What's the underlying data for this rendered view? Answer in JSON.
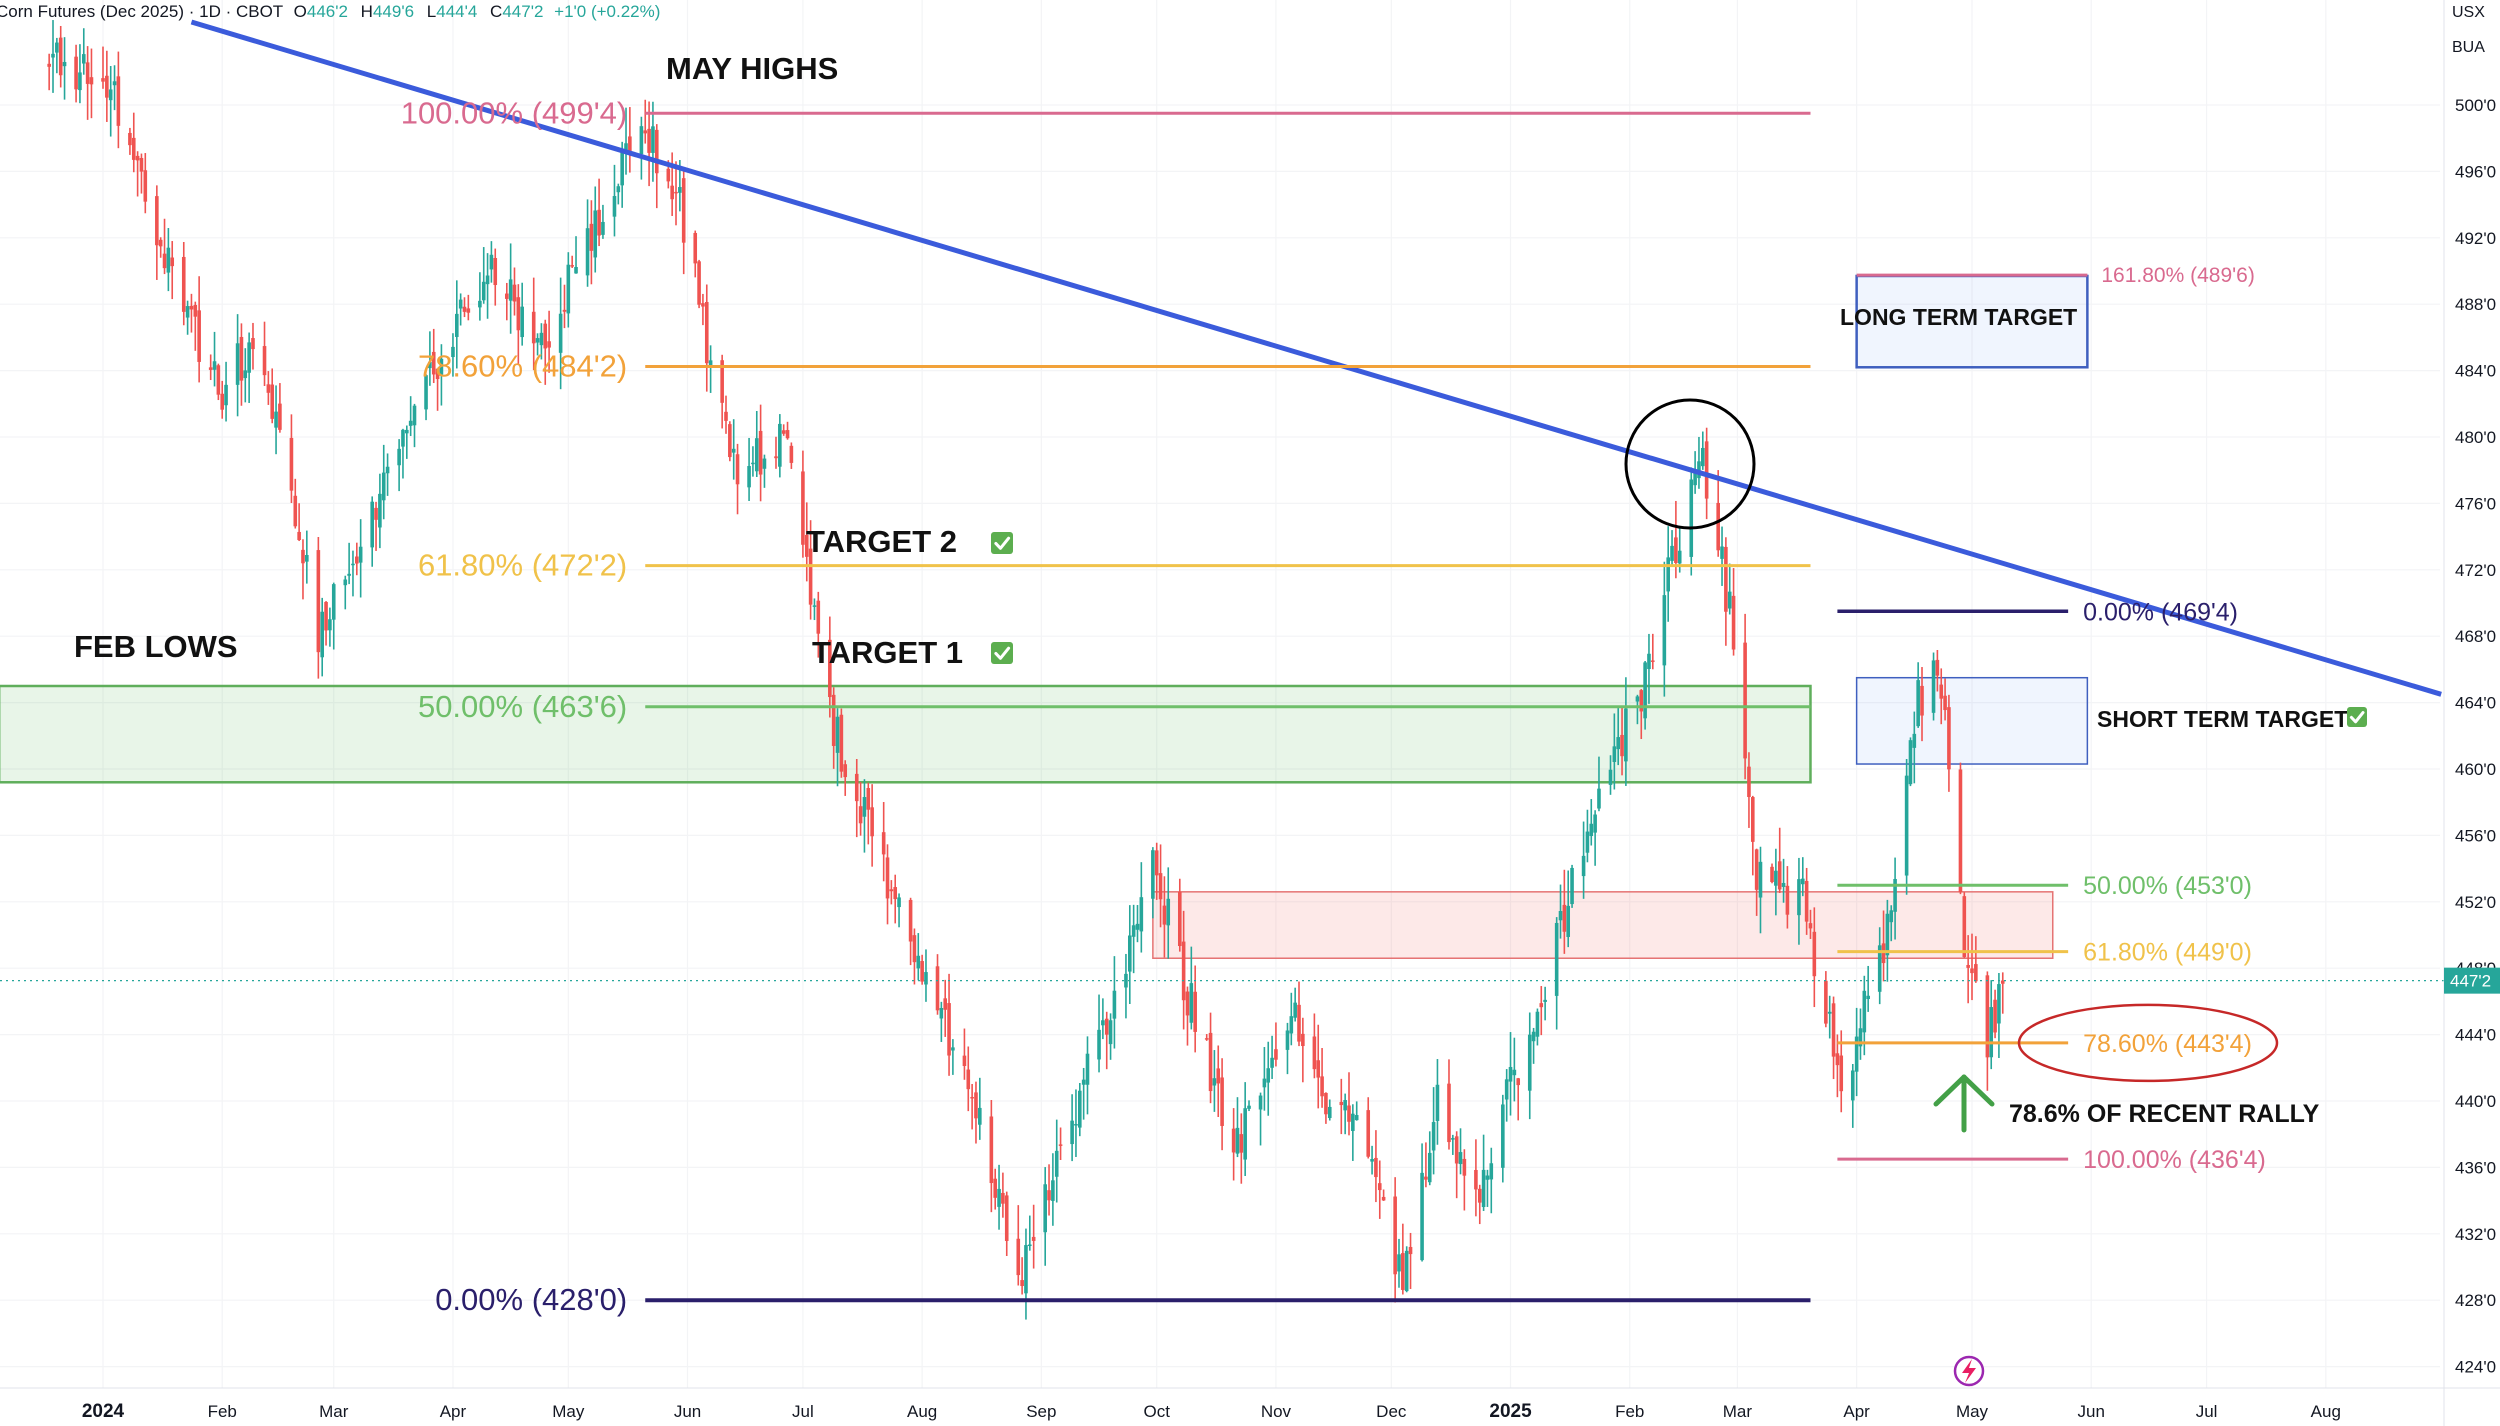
{
  "header": {
    "title": "Corn Futures (Dec 2025) · 1D · CBOT",
    "o_label": "O",
    "o_value": "446'2",
    "h_label": "H",
    "h_value": "449'6",
    "l_label": "L",
    "l_value": "444'4",
    "c_label": "C",
    "c_value": "447'2",
    "change": "+1'0 (+0.22%)"
  },
  "scale_header": {
    "currency": "USX",
    "unit": "BUA"
  },
  "current_price_badge": "447'2",
  "colors": {
    "up": "#26a69a",
    "down": "#ef5350",
    "trendline": "#3b5bdb",
    "fib_100": "#d96a8f",
    "fib_786": "#f2a23a",
    "fib_618": "#f0c24a",
    "fib_50": "#6fbf6a",
    "fib_0": "#2a1f6b"
  },
  "chart_data": {
    "type": "candlestick",
    "title": "Corn Futures (Dec 2025) · 1D · CBOT",
    "x_axis": {
      "labels": [
        "2024",
        "Feb",
        "Mar",
        "Apr",
        "May",
        "Jun",
        "Jul",
        "Aug",
        "Sep",
        "Oct",
        "Nov",
        "Dec",
        "2025",
        "Feb",
        "Mar",
        "Apr",
        "May",
        "Jun",
        "Jul",
        "Aug"
      ],
      "range": [
        "2023-12-01",
        "2025-08-31"
      ]
    },
    "y_axis": {
      "ticks": [
        "500'0",
        "496'0",
        "492'0",
        "488'0",
        "484'0",
        "480'0",
        "476'0",
        "472'0",
        "468'0",
        "464'0",
        "460'0",
        "456'0",
        "452'0",
        "448'0",
        "444'0",
        "440'0",
        "436'0",
        "432'0",
        "428'0",
        "424'0"
      ],
      "range": [
        423,
        505
      ]
    },
    "price_path": [
      {
        "date": "2023-12-20",
        "price": 503
      },
      {
        "date": "2024-01-05",
        "price": 500
      },
      {
        "date": "2024-01-18",
        "price": 490
      },
      {
        "date": "2024-02-01",
        "price": 482
      },
      {
        "date": "2024-02-10",
        "price": 487
      },
      {
        "date": "2024-02-26",
        "price": 468.5
      },
      {
        "date": "2024-03-06",
        "price": 472
      },
      {
        "date": "2024-03-22",
        "price": 482
      },
      {
        "date": "2024-04-10",
        "price": 490
      },
      {
        "date": "2024-04-25",
        "price": 486
      },
      {
        "date": "2024-05-10",
        "price": 494
      },
      {
        "date": "2024-05-20",
        "price": 499.5
      },
      {
        "date": "2024-05-31",
        "price": 493
      },
      {
        "date": "2024-06-07",
        "price": 484
      },
      {
        "date": "2024-06-14",
        "price": 477
      },
      {
        "date": "2024-06-27",
        "price": 481
      },
      {
        "date": "2024-07-08",
        "price": 463
      },
      {
        "date": "2024-07-22",
        "price": 454
      },
      {
        "date": "2024-08-08",
        "price": 444
      },
      {
        "date": "2024-08-27",
        "price": 430
      },
      {
        "date": "2024-09-12",
        "price": 441
      },
      {
        "date": "2024-09-30",
        "price": 454
      },
      {
        "date": "2024-10-11",
        "price": 445
      },
      {
        "date": "2024-10-22",
        "price": 437
      },
      {
        "date": "2024-11-05",
        "price": 446
      },
      {
        "date": "2024-11-15",
        "price": 439
      },
      {
        "date": "2024-11-25",
        "price": 438
      },
      {
        "date": "2024-12-04",
        "price": 429
      },
      {
        "date": "2024-12-13",
        "price": 440
      },
      {
        "date": "2024-12-23",
        "price": 434
      },
      {
        "date": "2025-01-08",
        "price": 446
      },
      {
        "date": "2025-01-21",
        "price": 456
      },
      {
        "date": "2025-02-03",
        "price": 464
      },
      {
        "date": "2025-02-14",
        "price": 474
      },
      {
        "date": "2025-02-20",
        "price": 478.5
      },
      {
        "date": "2025-02-28",
        "price": 468
      },
      {
        "date": "2025-03-06",
        "price": 453
      },
      {
        "date": "2025-03-18",
        "price": 452
      },
      {
        "date": "2025-03-28",
        "price": 441
      },
      {
        "date": "2025-04-08",
        "price": 449
      },
      {
        "date": "2025-04-17",
        "price": 464
      },
      {
        "date": "2025-04-22",
        "price": 467
      },
      {
        "date": "2025-04-29",
        "price": 450
      },
      {
        "date": "2025-05-05",
        "price": 444
      },
      {
        "date": "2025-05-09",
        "price": 447.25
      }
    ],
    "fib_major": [
      {
        "label": "100.00% (499'4)",
        "price": 499.5,
        "color": "#d96a8f"
      },
      {
        "label": "78.60% (484'2)",
        "price": 484.25,
        "color": "#f2a23a"
      },
      {
        "label": "61.80% (472'2)",
        "price": 472.25,
        "color": "#f0c24a"
      },
      {
        "label": "50.00% (463'6)",
        "price": 463.75,
        "color": "#6fbf6a"
      },
      {
        "label": "0.00% (428'0)",
        "price": 428.0,
        "color": "#2a1f6b"
      }
    ],
    "fib_minor": [
      {
        "label": "0.00% (469'4)",
        "price": 469.5,
        "color": "#2a1f6b"
      },
      {
        "label": "50.00% (453'0)",
        "price": 453.0,
        "color": "#6fbf6a"
      },
      {
        "label": "61.80% (449'0)",
        "price": 449.0,
        "color": "#f0c24a"
      },
      {
        "label": "78.60% (443'4)",
        "price": 443.5,
        "color": "#f2a23a"
      },
      {
        "label": "100.00% (436'4)",
        "price": 436.5,
        "color": "#d96a8f"
      }
    ],
    "extension_label": "161.80% (489'6)",
    "extension_price": 489.75,
    "trendline": {
      "from": {
        "date": "2024-01-24",
        "price": 505
      },
      "to": {
        "date": "2025-08-31",
        "price": 464.5
      }
    },
    "zones": {
      "feb_lows_zone": {
        "from": "2023-12-05",
        "to": "2025-03-20",
        "low": 459.2,
        "high": 465.0
      },
      "red_zone": {
        "from": "2024-09-30",
        "to": "2025-05-22",
        "low": 448.6,
        "high": 452.6
      },
      "short_term_box": {
        "from": "2025-04-01",
        "to": "2025-05-31",
        "low": 460.3,
        "high": 465.5
      },
      "long_term_box": {
        "from": "2025-04-01",
        "to": "2025-05-31",
        "low": 484.2,
        "high": 489.7
      }
    },
    "annotations": {
      "may_highs": "MAY HIGHS",
      "feb_lows": "FEB LOWS",
      "target_2": "TARGET 2",
      "target_1": "TARGET 1",
      "long_term_target": "LONG TERM TARGET",
      "short_term_target": "SHORT TERM TARGET",
      "recent_rally": "78.6% OF RECENT RALLY"
    }
  }
}
